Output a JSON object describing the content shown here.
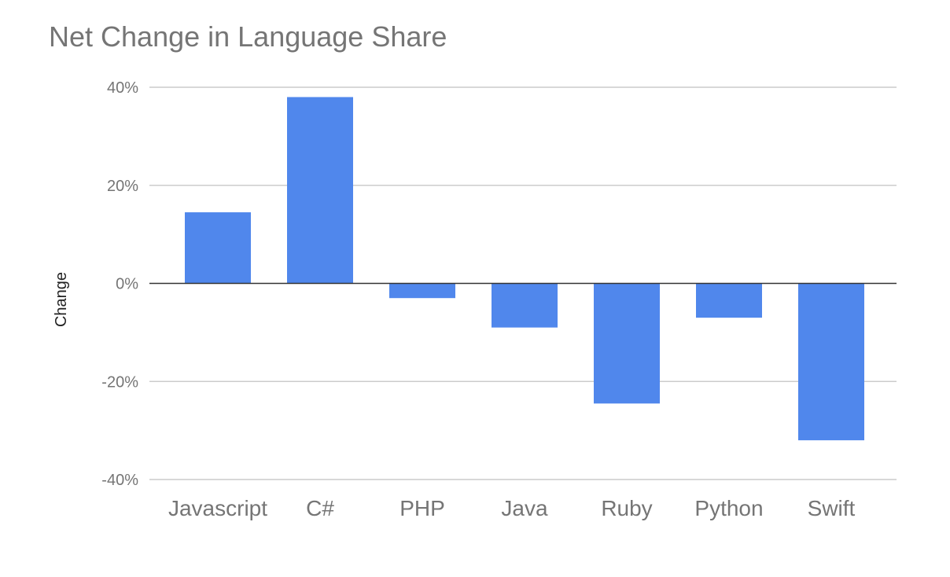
{
  "chart_data": {
    "type": "bar",
    "title": "Net Change in Language Share",
    "ylabel": "Change",
    "xlabel": "",
    "categories": [
      "Javascript",
      "C#",
      "PHP",
      "Java",
      "Ruby",
      "Python",
      "Swift"
    ],
    "values": [
      14.5,
      38,
      -3,
      -9,
      -24.5,
      -7,
      -32
    ],
    "ylim": [
      -40,
      40
    ],
    "yticks": [
      40,
      20,
      0,
      -20,
      -40
    ],
    "ytick_labels": [
      "40%",
      "20%",
      "0%",
      "-20%",
      "-40%"
    ],
    "grid": true,
    "legend": "none",
    "bar_color": "#5087ec",
    "grid_color": "#cccccc",
    "zero_line_color": "#333333",
    "text_color": "#757575"
  }
}
